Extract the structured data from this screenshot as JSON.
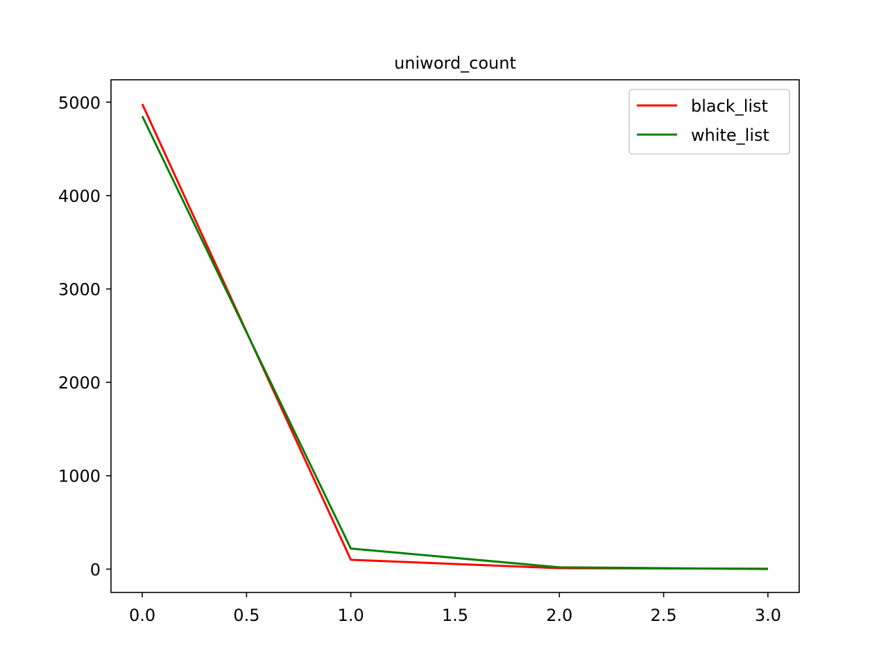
{
  "chart_data": {
    "type": "line",
    "title": "uniword_count",
    "xlabel": "",
    "ylabel": "",
    "xlim": [
      -0.15,
      3.15
    ],
    "ylim": [
      -250,
      5240
    ],
    "xticks": [
      0.0,
      0.5,
      1.0,
      1.5,
      2.0,
      2.5,
      3.0
    ],
    "xtick_labels": [
      "0.0",
      "0.5",
      "1.0",
      "1.5",
      "2.0",
      "2.5",
      "3.0"
    ],
    "yticks": [
      0,
      1000,
      2000,
      3000,
      4000,
      5000
    ],
    "ytick_labels": [
      "0",
      "1000",
      "2000",
      "3000",
      "4000",
      "5000"
    ],
    "grid": false,
    "legend_position": "top-right",
    "x": [
      0,
      1,
      2,
      3
    ],
    "series": [
      {
        "name": "black_list",
        "color": "#ff0000",
        "values": [
          4980,
          100,
          10,
          5
        ]
      },
      {
        "name": "white_list",
        "color": "#008000",
        "values": [
          4850,
          220,
          20,
          0
        ]
      }
    ]
  }
}
